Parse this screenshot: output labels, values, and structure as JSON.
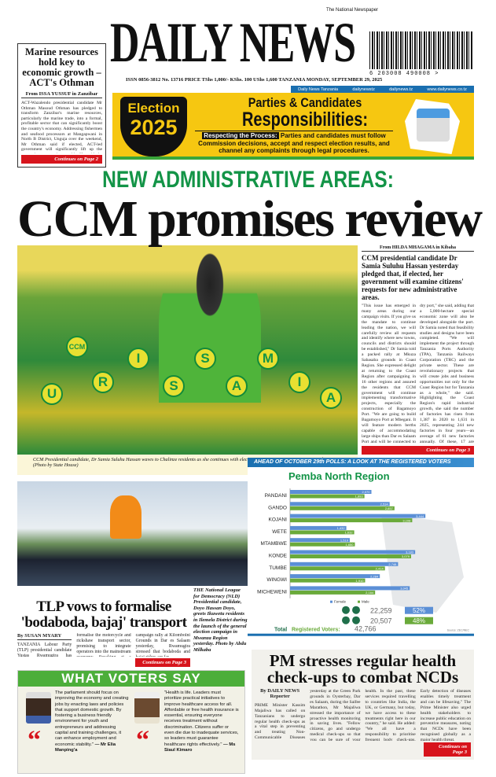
{
  "left_story": {
    "headline": "Marine resources hold key to economic growth – ACT's Othman",
    "byline": "From ISSA YUSSUF in Zanzibar",
    "body": "ACT-Wazalendo presidential candidate Mr Othman Masoud Othman has pledged to transform Zanzibar's marine resources, particularly the marine trade, into a formal, profitable sector that can significantly boost the country's economy. Addressing fishermen and seafood processors at Mangapwani in North B District, Unguja over the weekend, Mr Othman said if elected, ACT-led government will significantly lift up the country's vast marine wealth. He said the party will implement meaningful reforms, which benefit the citizens. \"Seafood are a major business that can generate substantial income for our people and strengthen the national economy. But",
    "continued": "Continues on Page 2"
  },
  "masthead": {
    "title": "DAILY NEWS",
    "tagline": "The National Newspaper",
    "barcode_number": "6 203008 490008 >",
    "issn_line": "ISSN 0856-3812   No. 13716  PRICE TShs 1,000/-   KShs. 100   UShs 1,600   TANZANIA   MONDAY, SEPTEMBER 29, 2025",
    "social": [
      "Daily News Tanzania",
      "dailynewstz",
      "dailynews.tz",
      "www.dailynews.co.tz"
    ]
  },
  "banner": {
    "badge_line1": "Election",
    "badge_line2": "2025",
    "title1": "Parties & Candidates",
    "title2": "Responsibilities:",
    "lead": "Respecting the Process:",
    "text": " Parties and candidates must follow Commission decisions, accept and respect election results, and channel any complaints through legal procedures.",
    "colors": {
      "background": "#f6c711",
      "accent": "#3aa63a"
    }
  },
  "main_story": {
    "kicker": "NEW ADMINISTRATIVE AREAS:",
    "headline": "CCM promises review",
    "photo_words": [
      "U",
      "CCM",
      "R",
      "I",
      "S",
      "S",
      "A",
      "M",
      "I",
      "A"
    ],
    "caption": "CCM Presidential candidate, Dr Samia Suluhu Hassan waves to Chalinze residents as she continues with election campaign in Coast Region yesterday. (Photo by State House)",
    "byline": "From HILDA MHAGAMA in Kibaha",
    "lead": "CCM presidential candidate Dr Samia Suluhu Hassan yesterday pledged that, if elected, her government will examine citizens' requests for new administrative areas.",
    "body": "\"This issue has emerged in many areas during our campaign visits. If you give us the mandate to continue leading the nation, we will carefully review all requests and identify where new towns, councils and districts should be established,\" Dr Samia told a packed rally at Mkuza Sabasaba grounds in Coast Region. She expressed delight at returning to the Coast Region after campaigning in 16 other regions and assured the residents that CCM government will continue implementing transformative projects, especially the construction of Bagamoyo Port. \"We are going to build Bagamoyo Port at Mbegani. It will feature modern berths capable of accommodating large ships than Dar es Salaam Port and will be connected to the SGR through a 10-kilometre stretch from Kwala dry port,\" she said, adding that a 5,000-hectare special economic zone will also be developed alongside the port. Dr Samia noted that feasibility studies and designs have been completed. \"We will implement the project through Tanzania Ports Authority (TPA), Tanzania Railways Corporation (TRC) and the private sector. These are revolutionary projects that will create jobs and business opportunities not only for the Coast Region but for Tanzania as a whole,\" she said. Highlighting the Coast Region's rapid industrial growth, she said the number of factories has risen from 1,387 in 2020 to 1,631 in 2025, representing 244 new factories in four years—an average of 61 new factories annually. Of these, 17 are large factories, bringing the total to",
    "continued": "Continues on Page 3"
  },
  "tlp_story": {
    "photo_caption": "THE National League for Democracy (NLD) Presidential candidate, Doyo Hassan Doyo, greets Ikuwetu residents in Ilemela District during the launch of the general election campaign in Mwanza Region yesterday. Photo by Abdu Milkaba",
    "headline": "TLP vows to formalise 'bodaboda, bajaj' transport",
    "byline": "By SUSAN MYARY",
    "body": "TANZANIA Labour Party (TLP) presidential candidate Yustas Rwamugira has pledged sweeping reforms to formalise the motorcycle and rickshaw transport sector, promising to integrate operators into the mainstream economy. Speaking at a campaign rally at Kilombolni Grounds in Dar es Salaam yesterday, Rwamugira stressed that bodaboda and bajaj riders are far",
    "continued": "Continues on Page 3"
  },
  "chart_data": {
    "type": "bar",
    "orientation": "horizontal",
    "banner": "AHEAD OF OCTOBER 29th POLLS: A LOOK AT THE REGISTERED VOTERS",
    "title": "Pemba North Region",
    "categories": [
      "PANDANI",
      "GANDO",
      "KOJANI",
      "WETE",
      "MTAMBWE",
      "KONDE",
      "TUMBE",
      "WINGWI",
      "MICHEWENI"
    ],
    "series": [
      {
        "name": "Female",
        "color": "#5b8fd6",
        "values": [
          2070,
          2534,
          3444,
          1432,
          1519,
          3183,
          2748,
          2284,
          3045
        ]
      },
      {
        "name": "Male",
        "color": "#6aaa3a",
        "values": [
          1893,
          2657,
          3108,
          1632,
          1650,
          3079,
          2414,
          1910,
          2164
        ]
      }
    ],
    "legend": [
      "Female",
      "Male"
    ],
    "legend_position": "bottom",
    "totals": [
      {
        "value": "22,259",
        "percent": "52%",
        "color": "#5b8fd6"
      },
      {
        "value": "20,507",
        "percent": "48%",
        "color": "#6aaa3a"
      }
    ],
    "total_label_a": "Total",
    "total_label_b": "Registered Voters:",
    "total_value": "42,766",
    "source": "Source: ZEC/NEC"
  },
  "voters": {
    "title": "WHAT VOTERS SAY",
    "quotes": [
      {
        "text": "The parliament should focus on improving the economy and creating jobs by enacting laws and policies that support domestic growth. By fostering a business friendly environment for youth and entrepreneurs and addressing capital and training challenges, it can enhance employment and economic stability.\"",
        "author": "— Mr Elia Manping'a"
      },
      {
        "text": "\"Health is life. Leaders must prioritize practical initiatives to improve healthcare access for all. Affordable or free health insurance is essential, ensuring everyone receives treatment without discrimination. Citizens suffer or even die due to inadequate services, so leaders must guarantee healthcare rights effectively.\"",
        "author": "— Ms Siaul Kimaro"
      }
    ]
  },
  "pm_story": {
    "headline": "PM stresses regular health check-ups to combat NCDs",
    "byline": "By DAILY NEWS Reporter",
    "body": "PRIME Minister Kassim Majaliwa has called on Tanzanians to undergo regular health check-ups as a vital step in preventing and treating Non-Communicable Diseases (NCDs) early. Speaking yesterday at the Green Park grounds in Oysterbay, Dar es Salaam, during the Saifee Marathon, Mr Majaliwa stressed the importance of proactive health monitoring in saving lives. \"Fellow citizens, go and undergo medical check-ups so that you can be sure of your health. In the past, these services required travelling to countries like India, the UK, or Germany, but today, we have access to these treatments right here in our country,\" he said. He added: \"We all have a responsibility to prioritise frequent body check-ups. Early detection of diseases enables timely treatment and can be lifesaving.\" The Prime Minister also urged health stakeholders to increase public education on preventive measures, noting that NCDs have been recognised globally as a major health threat.",
    "continued": "Continues on Page 3"
  }
}
